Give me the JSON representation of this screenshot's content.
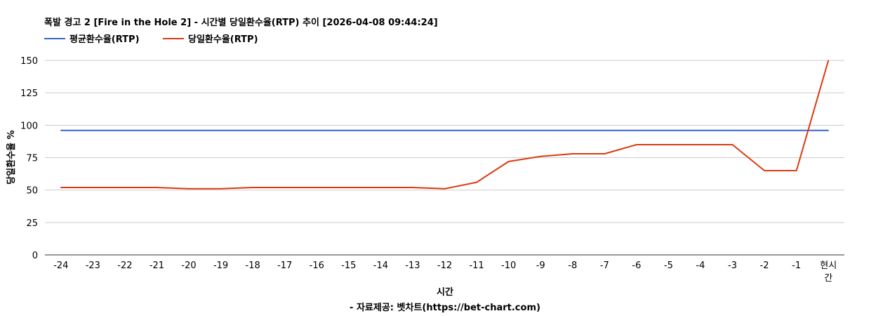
{
  "chart_data": {
    "type": "line",
    "title": "폭발 경고 2 [Fire in the Hole 2] - 시간별 당일환수율(RTP) 추이 [2026-04-08 09:44:24]",
    "xlabel": "시간",
    "source": "- 자료제공: 벳차트(https://bet-chart.com)",
    "ylabel": "당일환수율 %",
    "categories": [
      "-24",
      "-23",
      "-22",
      "-21",
      "-20",
      "-19",
      "-18",
      "-17",
      "-16",
      "-15",
      "-14",
      "-13",
      "-12",
      "-11",
      "-10",
      "-9",
      "-8",
      "-7",
      "-6",
      "-5",
      "-4",
      "-3",
      "-2",
      "-1",
      "현시간"
    ],
    "ylim": [
      0,
      150
    ],
    "yticks": [
      "0",
      "25",
      "50",
      "75",
      "100",
      "125",
      "150"
    ],
    "grid": true,
    "legend_position": "top-left",
    "series": [
      {
        "name": "평균환수율(RTP)",
        "color": "#3366cc",
        "values": [
          96,
          96,
          96,
          96,
          96,
          96,
          96,
          96,
          96,
          96,
          96,
          96,
          96,
          96,
          96,
          96,
          96,
          96,
          96,
          96,
          96,
          96,
          96,
          96,
          96
        ]
      },
      {
        "name": "당일환수율(RTP)",
        "color": "#dc3912",
        "values": [
          52,
          52,
          52,
          52,
          51,
          51,
          52,
          52,
          52,
          52,
          52,
          52,
          51,
          56,
          72,
          76,
          78,
          78,
          85,
          85,
          85,
          85,
          65,
          65,
          150
        ]
      }
    ]
  }
}
